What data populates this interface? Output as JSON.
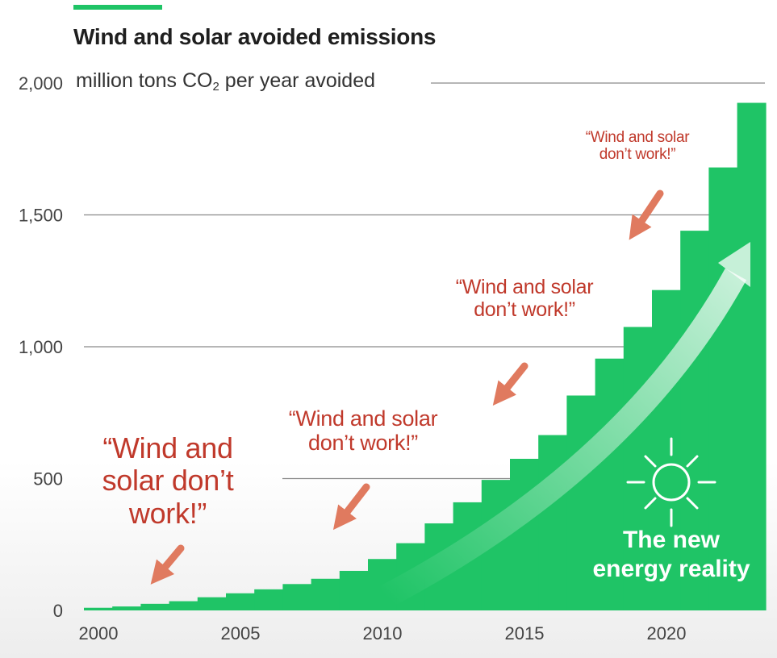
{
  "chart_data": {
    "type": "bar",
    "title": "Wind and solar avoided emissions",
    "ylabel_prefix": "million tons CO",
    "ylabel_subscript": "2",
    "ylabel_suffix": " per year avoided",
    "xlabel": "",
    "x": [
      2000,
      2001,
      2002,
      2003,
      2004,
      2005,
      2006,
      2007,
      2008,
      2009,
      2010,
      2011,
      2012,
      2013,
      2014,
      2015,
      2016,
      2017,
      2018,
      2019,
      2020,
      2021,
      2022,
      2023
    ],
    "values": [
      10,
      15,
      25,
      35,
      50,
      65,
      80,
      100,
      120,
      150,
      195,
      255,
      330,
      410,
      495,
      575,
      665,
      815,
      955,
      1075,
      1215,
      1440,
      1680,
      1925
    ],
    "ylim": [
      0,
      2000
    ],
    "yticks": [
      0,
      500,
      1000,
      1500,
      2000
    ],
    "ytick_labels": [
      "0",
      "500",
      "1,000",
      "1,500",
      "2,000"
    ],
    "xtick_labels": [
      "2000",
      "2005",
      "2010",
      "2015",
      "2020"
    ],
    "grid": true,
    "annotations": [
      "\"Wind and solar don't work!\"",
      "\"Wind and solar don't work!\"",
      "\"Wind and solar don't work!\"",
      "\"Wind and solar don't work!\"",
      "The new energy reality"
    ]
  },
  "annotation_lines": {
    "q1": "“Wind and\nsolar don’t\nwork!”",
    "q2": "“Wind and solar\ndon’t work!”",
    "q3": "“Wind and solar\ndon’t work!”",
    "q4": "“Wind and solar\ndon’t work!”",
    "reality": "The new\nenergy reality"
  },
  "colors": {
    "bar": "#1fc466",
    "accent": "#1fc466",
    "quote": "#c0392b",
    "arrow": "#e07a5f",
    "grid": "#8a8a8a",
    "text": "#1f1f1f"
  },
  "icons": {
    "sun": "sun-icon"
  }
}
